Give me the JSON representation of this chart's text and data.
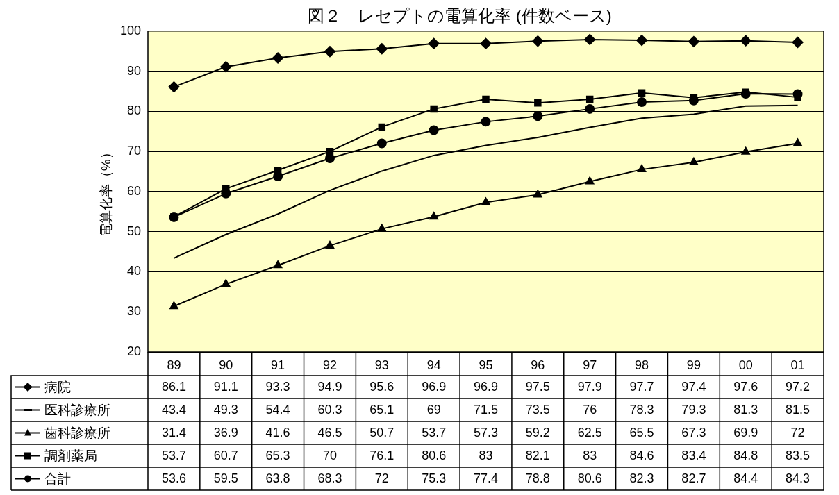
{
  "chart_data": {
    "type": "line",
    "title": "図２　レセプトの電算化率 (件数ベース)",
    "ylabel": "電算化率（%）",
    "categories": [
      "89",
      "90",
      "91",
      "92",
      "93",
      "94",
      "95",
      "96",
      "97",
      "98",
      "99",
      "00",
      "01"
    ],
    "series": [
      {
        "name": "病院",
        "color": "#000000",
        "marker": "diamond",
        "values": [
          86.1,
          91.1,
          93.3,
          94.9,
          95.6,
          96.9,
          96.9,
          97.5,
          97.9,
          97.7,
          97.4,
          97.6,
          97.2
        ]
      },
      {
        "name": "医科診療所",
        "color": "#000000",
        "marker": "none",
        "values": [
          43.4,
          49.3,
          54.4,
          60.3,
          65.1,
          69,
          71.5,
          73.5,
          76,
          78.3,
          79.3,
          81.3,
          81.5
        ]
      },
      {
        "name": "歯科診療所",
        "color": "#000000",
        "marker": "triangle",
        "values": [
          31.4,
          36.9,
          41.6,
          46.5,
          50.7,
          53.7,
          57.3,
          59.2,
          62.5,
          65.5,
          67.3,
          69.9,
          72
        ]
      },
      {
        "name": "調剤薬局",
        "color": "#000000",
        "marker": "square",
        "values": [
          53.7,
          60.7,
          65.3,
          70,
          76.1,
          80.6,
          83,
          82.1,
          83,
          84.6,
          83.4,
          84.8,
          83.5
        ]
      },
      {
        "name": "合計",
        "color": "#000000",
        "marker": "circle",
        "values": [
          53.6,
          59.5,
          63.8,
          68.3,
          72,
          75.3,
          77.4,
          78.8,
          80.6,
          82.3,
          82.7,
          84.4,
          84.3
        ]
      }
    ],
    "ylim": [
      20,
      100
    ],
    "yticks": [
      20,
      30,
      40,
      50,
      60,
      70,
      80,
      90,
      100
    ],
    "grid": "y",
    "legend": "bottom",
    "data_labels": true
  }
}
